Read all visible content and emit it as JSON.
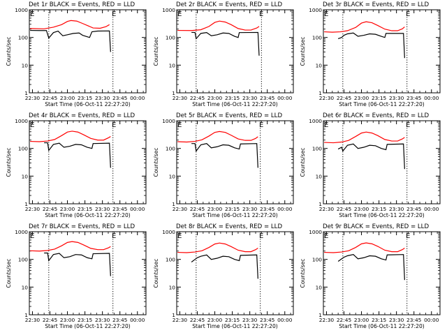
{
  "chart_data": {
    "type": "line",
    "y_scale": "log",
    "ylim": [
      1,
      1000
    ],
    "ylabel": "Counts/sec",
    "xlabel": "Start Time (06-Oct-11 22:27:20)",
    "x_tick_labels": [
      "22:30",
      "22:45",
      "23:00",
      "23:15",
      "23:30",
      "23:45",
      "00:00"
    ],
    "y_tick_labels": [
      "1",
      "10",
      "100",
      "1000"
    ],
    "x_range": [
      "22:27:20",
      "00:07:20"
    ],
    "marker_label": "E",
    "grid": false,
    "legend": "none",
    "colors": {
      "events": "#000000",
      "lld": "#ff0000"
    },
    "panels": [
      {
        "title": "Det 1r BLACK = Events, RED = LLD",
        "dotted_lines": [
          "22:44",
          "23:39"
        ],
        "markers": [
          "22:28",
          "23:38"
        ],
        "lld": [
          [
            "22:28",
            210
          ],
          [
            "22:40",
            205
          ],
          [
            "22:48",
            235
          ],
          [
            "22:55",
            290
          ],
          [
            "23:00",
            380
          ],
          [
            "23:03",
            410
          ],
          [
            "23:08",
            390
          ],
          [
            "23:13",
            320
          ],
          [
            "23:18",
            260
          ],
          [
            "23:22",
            220
          ],
          [
            "23:28",
            215
          ],
          [
            "23:33",
            245
          ],
          [
            "23:36",
            290
          ]
        ],
        "events": [
          [
            "22:28",
            180
          ],
          [
            "22:36",
            178
          ],
          [
            "22:42",
            178
          ],
          [
            "22:44",
            95
          ],
          [
            "22:48",
            150
          ],
          [
            "22:52",
            170
          ],
          [
            "22:56",
            115
          ],
          [
            "23:00",
            125
          ],
          [
            "23:05",
            140
          ],
          [
            "23:10",
            145
          ],
          [
            "23:13",
            120
          ],
          [
            "23:19",
            100
          ],
          [
            "23:21",
            160
          ],
          [
            "23:26",
            170
          ],
          [
            "23:36",
            172
          ],
          [
            "23:37",
            30
          ]
        ]
      },
      {
        "title": "Det 2r BLACK = Events, RED = LLD",
        "dotted_lines": [
          "22:44",
          "23:40"
        ],
        "markers": [
          "22:28",
          "23:38"
        ],
        "lld": [
          [
            "22:28",
            180
          ],
          [
            "22:40",
            178
          ],
          [
            "22:48",
            190
          ],
          [
            "22:55",
            250
          ],
          [
            "23:00",
            350
          ],
          [
            "23:04",
            390
          ],
          [
            "23:09",
            360
          ],
          [
            "23:14",
            290
          ],
          [
            "23:20",
            210
          ],
          [
            "23:26",
            185
          ],
          [
            "23:31",
            185
          ],
          [
            "23:36",
            220
          ],
          [
            "23:38",
            250
          ]
        ],
        "events": [
          [
            "22:40",
            152
          ],
          [
            "22:43",
            152
          ],
          [
            "22:44",
            90
          ],
          [
            "22:48",
            140
          ],
          [
            "22:53",
            150
          ],
          [
            "22:57",
            115
          ],
          [
            "23:02",
            125
          ],
          [
            "23:07",
            145
          ],
          [
            "23:12",
            140
          ],
          [
            "23:17",
            110
          ],
          [
            "23:20",
            100
          ],
          [
            "23:21",
            150
          ],
          [
            "23:37",
            152
          ],
          [
            "23:38",
            22
          ]
        ]
      },
      {
        "title": "Det 3r BLACK = Events, RED = LLD",
        "dotted_lines": [
          "22:44",
          "23:39"
        ],
        "markers": [
          "22:28",
          "23:38"
        ],
        "lld": [
          [
            "22:28",
            160
          ],
          [
            "22:35",
            155
          ],
          [
            "22:42",
            160
          ],
          [
            "22:48",
            175
          ],
          [
            "22:55",
            230
          ],
          [
            "23:00",
            330
          ],
          [
            "23:04",
            370
          ],
          [
            "23:09",
            340
          ],
          [
            "23:14",
            270
          ],
          [
            "23:20",
            200
          ],
          [
            "23:26",
            175
          ],
          [
            "23:31",
            175
          ],
          [
            "23:35",
            205
          ],
          [
            "23:37",
            240
          ]
        ],
        "events": [
          [
            "22:40",
            90
          ],
          [
            "22:43",
            100
          ],
          [
            "22:45",
            120
          ],
          [
            "22:48",
            135
          ],
          [
            "22:53",
            145
          ],
          [
            "22:57",
            110
          ],
          [
            "23:02",
            120
          ],
          [
            "23:07",
            135
          ],
          [
            "23:12",
            130
          ],
          [
            "23:17",
            110
          ],
          [
            "23:20",
            100
          ],
          [
            "23:21",
            140
          ],
          [
            "23:36",
            140
          ],
          [
            "23:37",
            18
          ]
        ]
      },
      {
        "title": "Det 4r BLACK = Events, RED = LLD",
        "dotted_lines": [
          "22:44",
          "23:39"
        ],
        "markers": [
          "22:28",
          "23:38"
        ],
        "lld": [
          [
            "22:28",
            180
          ],
          [
            "22:36",
            175
          ],
          [
            "22:43",
            185
          ],
          [
            "22:49",
            210
          ],
          [
            "22:55",
            290
          ],
          [
            "23:00",
            390
          ],
          [
            "23:04",
            420
          ],
          [
            "23:09",
            390
          ],
          [
            "23:14",
            310
          ],
          [
            "23:20",
            230
          ],
          [
            "23:26",
            200
          ],
          [
            "23:31",
            200
          ],
          [
            "23:35",
            240
          ],
          [
            "23:37",
            270
          ]
        ],
        "events": [
          [
            "22:40",
            160
          ],
          [
            "22:43",
            160
          ],
          [
            "22:44",
            85
          ],
          [
            "22:48",
            140
          ],
          [
            "22:53",
            155
          ],
          [
            "22:57",
            110
          ],
          [
            "23:02",
            120
          ],
          [
            "23:07",
            140
          ],
          [
            "23:12",
            135
          ],
          [
            "23:17",
            110
          ],
          [
            "23:21",
            100
          ],
          [
            "23:22",
            150
          ],
          [
            "23:36",
            155
          ],
          [
            "23:37",
            20
          ]
        ]
      },
      {
        "title": "Det 5r BLACK = Events, RED = LLD",
        "dotted_lines": [
          "22:44",
          "23:39"
        ],
        "markers": [
          "22:28",
          "23:38"
        ],
        "lld": [
          [
            "22:28",
            175
          ],
          [
            "22:36",
            170
          ],
          [
            "22:43",
            180
          ],
          [
            "22:49",
            205
          ],
          [
            "22:55",
            280
          ],
          [
            "23:00",
            380
          ],
          [
            "23:04",
            410
          ],
          [
            "23:09",
            380
          ],
          [
            "23:14",
            300
          ],
          [
            "23:20",
            220
          ],
          [
            "23:26",
            195
          ],
          [
            "23:31",
            195
          ],
          [
            "23:35",
            230
          ],
          [
            "23:37",
            265
          ]
        ],
        "events": [
          [
            "22:40",
            150
          ],
          [
            "22:43",
            150
          ],
          [
            "22:44",
            80
          ],
          [
            "22:48",
            135
          ],
          [
            "22:53",
            150
          ],
          [
            "22:57",
            105
          ],
          [
            "23:02",
            115
          ],
          [
            "23:07",
            135
          ],
          [
            "23:12",
            130
          ],
          [
            "23:17",
            105
          ],
          [
            "23:21",
            95
          ],
          [
            "23:22",
            145
          ],
          [
            "23:36",
            150
          ],
          [
            "23:37",
            20
          ]
        ]
      },
      {
        "title": "Det 6r BLACK = Events, RED = LLD",
        "dotted_lines": [
          "22:44",
          "23:39"
        ],
        "markers": [
          "22:28",
          "23:38"
        ],
        "lld": [
          [
            "22:28",
            165
          ],
          [
            "22:36",
            160
          ],
          [
            "22:43",
            170
          ],
          [
            "22:49",
            195
          ],
          [
            "22:55",
            270
          ],
          [
            "23:00",
            360
          ],
          [
            "23:04",
            390
          ],
          [
            "23:09",
            360
          ],
          [
            "23:14",
            290
          ],
          [
            "23:20",
            210
          ],
          [
            "23:26",
            185
          ],
          [
            "23:31",
            185
          ],
          [
            "23:35",
            220
          ],
          [
            "23:37",
            250
          ]
        ],
        "events": [
          [
            "22:40",
            95
          ],
          [
            "22:43",
            110
          ],
          [
            "22:44",
            80
          ],
          [
            "22:48",
            130
          ],
          [
            "22:53",
            145
          ],
          [
            "22:57",
            100
          ],
          [
            "23:02",
            110
          ],
          [
            "23:07",
            130
          ],
          [
            "23:12",
            125
          ],
          [
            "23:17",
            100
          ],
          [
            "23:21",
            90
          ],
          [
            "23:22",
            140
          ],
          [
            "23:36",
            145
          ],
          [
            "23:37",
            18
          ]
        ]
      },
      {
        "title": "Det 7r BLACK = Events, RED = LLD",
        "dotted_lines": [
          "22:44",
          "23:39"
        ],
        "markers": [
          "22:28",
          "23:38"
        ],
        "lld": [
          [
            "22:28",
            205
          ],
          [
            "22:36",
            200
          ],
          [
            "22:43",
            210
          ],
          [
            "22:49",
            235
          ],
          [
            "22:55",
            310
          ],
          [
            "23:00",
            410
          ],
          [
            "23:04",
            440
          ],
          [
            "23:09",
            410
          ],
          [
            "23:14",
            330
          ],
          [
            "23:20",
            250
          ],
          [
            "23:26",
            225
          ],
          [
            "23:31",
            225
          ],
          [
            "23:35",
            260
          ],
          [
            "23:37",
            290
          ]
        ],
        "events": [
          [
            "22:40",
            170
          ],
          [
            "22:43",
            170
          ],
          [
            "22:44",
            90
          ],
          [
            "22:48",
            150
          ],
          [
            "22:53",
            165
          ],
          [
            "22:57",
            115
          ],
          [
            "23:02",
            125
          ],
          [
            "23:07",
            150
          ],
          [
            "23:12",
            145
          ],
          [
            "23:17",
            115
          ],
          [
            "23:21",
            105
          ],
          [
            "23:22",
            160
          ],
          [
            "23:36",
            165
          ],
          [
            "23:37",
            25
          ]
        ]
      },
      {
        "title": "Det 8r BLACK = Events, RED = LLD",
        "dotted_lines": [
          "22:44",
          "23:39"
        ],
        "markers": [
          "22:28",
          "23:38"
        ],
        "lld": [
          [
            "22:28",
            180
          ],
          [
            "22:36",
            175
          ],
          [
            "22:43",
            185
          ],
          [
            "22:49",
            205
          ],
          [
            "22:55",
            270
          ],
          [
            "23:00",
            360
          ],
          [
            "23:04",
            390
          ],
          [
            "23:09",
            360
          ],
          [
            "23:14",
            290
          ],
          [
            "23:20",
            215
          ],
          [
            "23:26",
            190
          ],
          [
            "23:31",
            190
          ],
          [
            "23:35",
            225
          ],
          [
            "23:37",
            255
          ]
        ],
        "events": [
          [
            "22:40",
            80
          ],
          [
            "22:43",
            100
          ],
          [
            "22:45",
            115
          ],
          [
            "22:48",
            130
          ],
          [
            "22:53",
            145
          ],
          [
            "22:57",
            100
          ],
          [
            "23:02",
            110
          ],
          [
            "23:07",
            130
          ],
          [
            "23:12",
            125
          ],
          [
            "23:17",
            100
          ],
          [
            "23:21",
            90
          ],
          [
            "23:22",
            140
          ],
          [
            "23:36",
            145
          ],
          [
            "23:37",
            20
          ]
        ]
      },
      {
        "title": "Det 9r BLACK = Events, RED = LLD",
        "dotted_lines": [
          "22:44",
          "23:39"
        ],
        "markers": [
          "22:28",
          "23:38"
        ],
        "lld": [
          [
            "22:28",
            180
          ],
          [
            "22:36",
            175
          ],
          [
            "22:43",
            185
          ],
          [
            "22:49",
            205
          ],
          [
            "22:55",
            270
          ],
          [
            "23:00",
            365
          ],
          [
            "23:04",
            395
          ],
          [
            "23:09",
            365
          ],
          [
            "23:14",
            295
          ],
          [
            "23:20",
            215
          ],
          [
            "23:26",
            190
          ],
          [
            "23:31",
            190
          ],
          [
            "23:35",
            225
          ],
          [
            "23:37",
            255
          ]
        ],
        "events": [
          [
            "22:40",
            85
          ],
          [
            "22:43",
            105
          ],
          [
            "22:45",
            120
          ],
          [
            "22:48",
            135
          ],
          [
            "22:53",
            150
          ],
          [
            "22:57",
            105
          ],
          [
            "23:02",
            115
          ],
          [
            "23:07",
            135
          ],
          [
            "23:12",
            130
          ],
          [
            "23:17",
            105
          ],
          [
            "23:21",
            95
          ],
          [
            "23:22",
            145
          ],
          [
            "23:36",
            150
          ],
          [
            "23:37",
            18
          ]
        ]
      }
    ]
  }
}
